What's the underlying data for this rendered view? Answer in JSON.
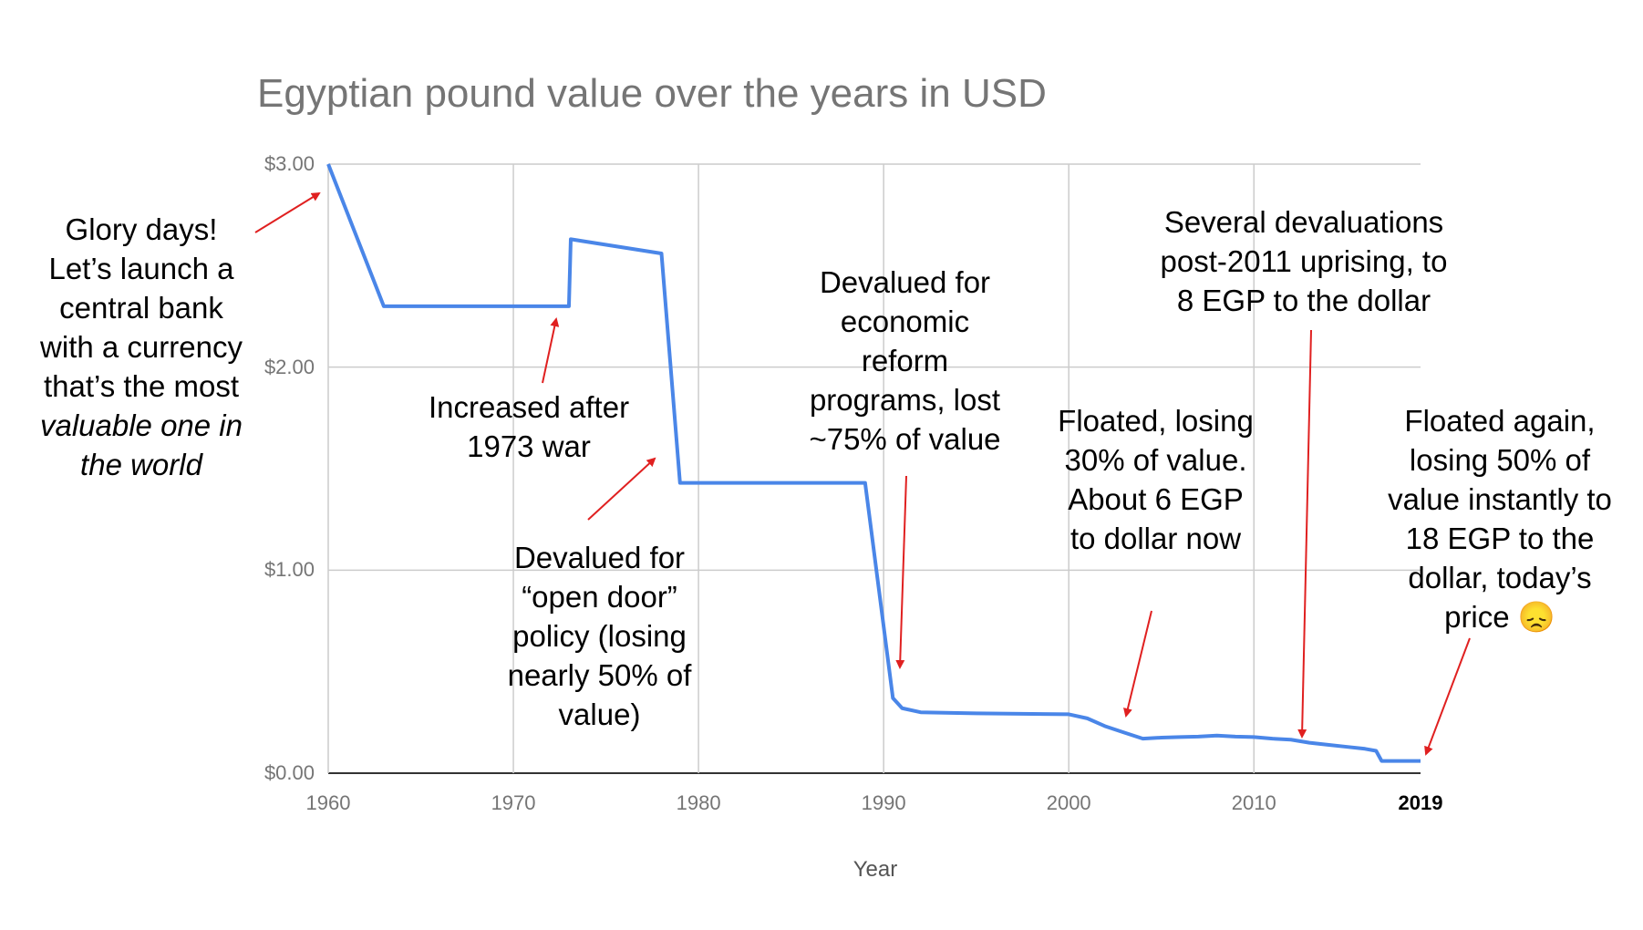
{
  "title": "Egyptian pound value over the years in USD",
  "chart_data": {
    "type": "line",
    "title": "Egyptian pound value over the years in USD",
    "xlabel": "Year",
    "ylabel": "",
    "xlim": [
      1960,
      2019
    ],
    "ylim": [
      0,
      3
    ],
    "grid": true,
    "y_ticks": [
      "$0.00",
      "$1.00",
      "$2.00",
      "$3.00"
    ],
    "x_ticks": [
      "1960",
      "1970",
      "1980",
      "1990",
      "2000",
      "2010"
    ],
    "x_end_label": "2019",
    "series": [
      {
        "color": "#4a86e8",
        "points": [
          [
            1960,
            3.0
          ],
          [
            1963,
            2.3
          ],
          [
            1973,
            2.3
          ],
          [
            1973.1,
            2.63
          ],
          [
            1978,
            2.56
          ],
          [
            1979,
            1.43
          ],
          [
            1989,
            1.43
          ],
          [
            1990.5,
            0.37
          ],
          [
            1991,
            0.32
          ],
          [
            1992,
            0.3
          ],
          [
            1995,
            0.295
          ],
          [
            2000,
            0.29
          ],
          [
            2001,
            0.27
          ],
          [
            2002,
            0.23
          ],
          [
            2003,
            0.2
          ],
          [
            2004,
            0.17
          ],
          [
            2005,
            0.175
          ],
          [
            2006,
            0.178
          ],
          [
            2007,
            0.18
          ],
          [
            2008,
            0.185
          ],
          [
            2009,
            0.18
          ],
          [
            2010,
            0.178
          ],
          [
            2011,
            0.17
          ],
          [
            2012,
            0.165
          ],
          [
            2013,
            0.15
          ],
          [
            2014,
            0.14
          ],
          [
            2015,
            0.13
          ],
          [
            2016,
            0.12
          ],
          [
            2016.6,
            0.11
          ],
          [
            2016.9,
            0.06
          ],
          [
            2019,
            0.06
          ]
        ]
      }
    ],
    "annotations": [
      {
        "lines": [
          "Glory days!",
          "Let’s launch a",
          "central bank",
          "with a currency",
          "that’s the most",
          "valuable one in",
          "the world"
        ],
        "italic_from_line": 5,
        "arrow_color": "#e02020"
      },
      {
        "text": "Increased after\n1973 war"
      },
      {
        "text": "Devalued for\n“open door”\npolicy (losing\nnearly 50% of\nvalue)"
      },
      {
        "text": "Devalued for\neconomic\nreform\nprograms, lost\n~75% of value"
      },
      {
        "text": "Floated, losing\n30% of value.\nAbout 6 EGP\nto dollar now"
      },
      {
        "text": "Several devaluations\npost-2011 uprising, to\n8 EGP to the dollar"
      },
      {
        "text": "Floated again,\nlosing 50% of\nvalue instantly to\n18 EGP to the\ndollar, today’s\nprice 😞"
      }
    ]
  }
}
